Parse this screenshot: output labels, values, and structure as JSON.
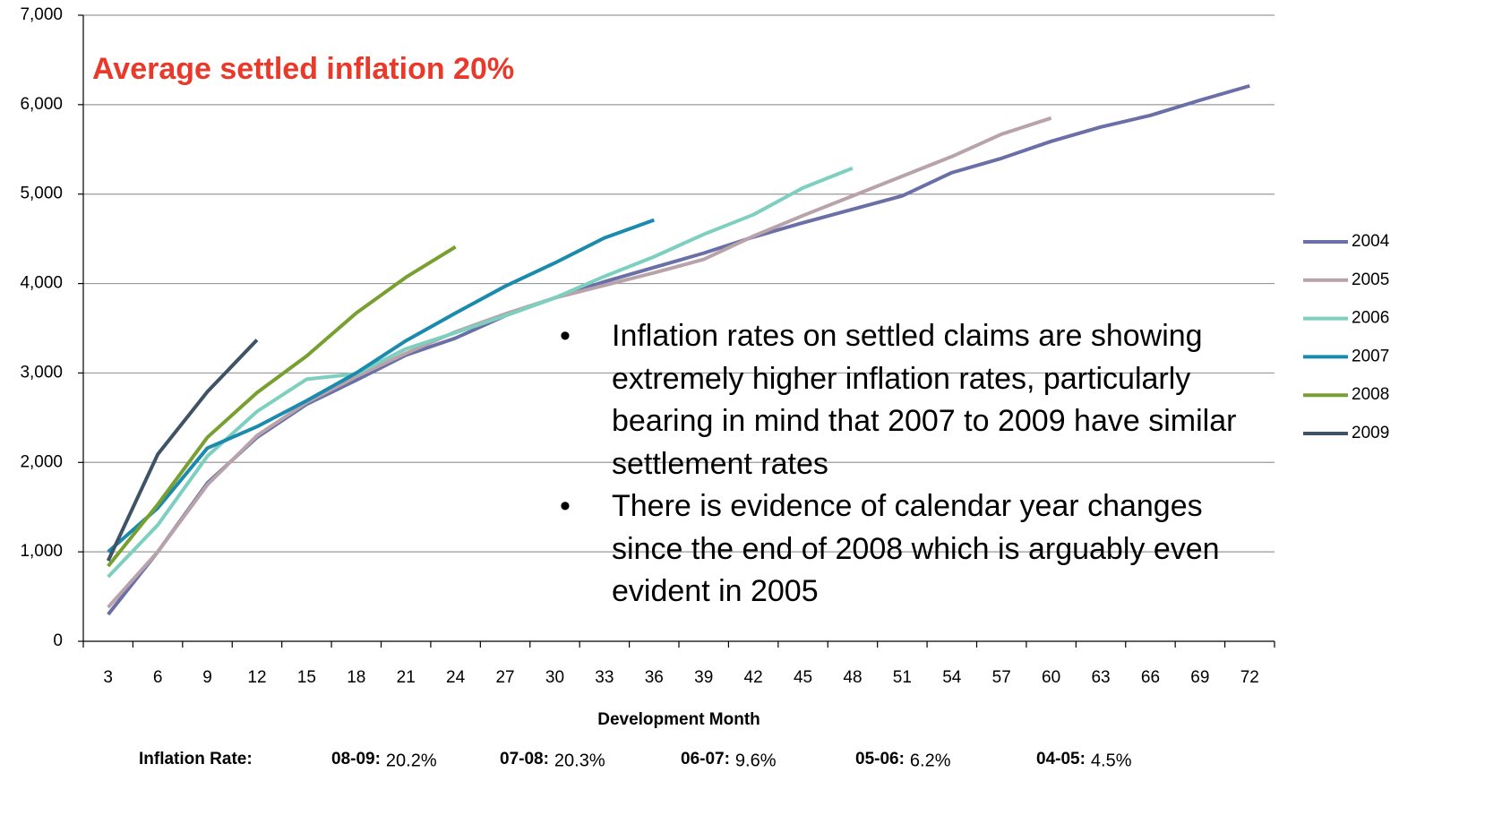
{
  "chart_data": {
    "type": "line",
    "annotation_title": "Average settled inflation 20%",
    "x_label": "Development Month",
    "categories": [
      3,
      6,
      9,
      12,
      15,
      18,
      21,
      24,
      27,
      30,
      33,
      36,
      39,
      42,
      45,
      48,
      51,
      54,
      57,
      60,
      63,
      66,
      69,
      72
    ],
    "series": [
      {
        "name": "2004",
        "color": "#6b6fa8",
        "values": [
          300,
          1000,
          1770,
          2280,
          2650,
          2920,
          3200,
          3390,
          3640,
          3840,
          4020,
          4180,
          4340,
          4520,
          4680,
          4830,
          4980,
          5240,
          5400,
          5590,
          5750,
          5880,
          6050,
          6210
        ]
      },
      {
        "name": "2005",
        "color": "#b9a3ab",
        "values": [
          380,
          1000,
          1750,
          2300,
          2670,
          2960,
          3220,
          3460,
          3660,
          3840,
          3980,
          4120,
          4270,
          4530,
          4760,
          4980,
          5200,
          5420,
          5670,
          5850,
          null,
          null,
          null,
          null
        ]
      },
      {
        "name": "2006",
        "color": "#7dd0c0",
        "values": [
          720,
          1300,
          2070,
          2570,
          2930,
          2990,
          3270,
          3450,
          3640,
          3840,
          4080,
          4300,
          4550,
          4770,
          5070,
          5290,
          null,
          null,
          null,
          null,
          null,
          null,
          null,
          null
        ]
      },
      {
        "name": "2007",
        "color": "#1a8aad",
        "values": [
          1000,
          1490,
          2160,
          2400,
          2690,
          3000,
          3360,
          3670,
          3970,
          4230,
          4510,
          4710,
          null,
          null,
          null,
          null,
          null,
          null,
          null,
          null,
          null,
          null,
          null,
          null
        ]
      },
      {
        "name": "2008",
        "color": "#78a030",
        "values": [
          840,
          1530,
          2280,
          2780,
          3190,
          3670,
          4070,
          4410,
          null,
          null,
          null,
          null,
          null,
          null,
          null,
          null,
          null,
          null,
          null,
          null,
          null,
          null,
          null,
          null
        ]
      },
      {
        "name": "2009",
        "color": "#3f5366",
        "values": [
          900,
          2090,
          2790,
          3370,
          null,
          null,
          null,
          null,
          null,
          null,
          null,
          null,
          null,
          null,
          null,
          null,
          null,
          null,
          null,
          null,
          null,
          null,
          null,
          null
        ]
      }
    ],
    "ylim": [
      0,
      7000
    ],
    "yticks": [
      0,
      {
        "value": 1000,
        "label": "1,000"
      },
      {
        "value": 2000,
        "label": "2,000"
      },
      {
        "value": 3000,
        "label": "3,000"
      },
      {
        "value": 4000,
        "label": "4,000"
      },
      {
        "value": 5000,
        "label": "5,000"
      },
      {
        "value": 6000,
        "label": "6,000"
      },
      {
        "value": 7000,
        "label": "7,000"
      }
    ],
    "grid": true,
    "legend": "right",
    "bullets": [
      "Inflation rates on settled claims are showing extremely higher inflation rates, particularly bearing in mind that 2007 to 2009 have similar settlement rates",
      "There is evidence of calendar year changes since the end of 2008 which is arguably even evident in 2005"
    ],
    "inflation_label": "Inflation Rate:",
    "inflation_rates": [
      {
        "period": "08-09:",
        "rate": "20.2%"
      },
      {
        "period": "07-08:",
        "rate": "20.3%"
      },
      {
        "period": "06-07:",
        "rate": "9.6%"
      },
      {
        "period": "05-06:",
        "rate": "6.2%"
      },
      {
        "period": "04-05:",
        "rate": "4.5%"
      }
    ]
  }
}
